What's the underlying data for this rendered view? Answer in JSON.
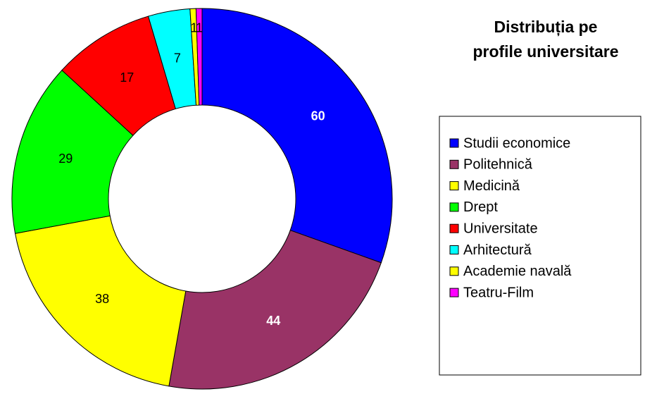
{
  "chart_data": {
    "type": "donut",
    "title": "Distribuția pe profile universitare",
    "categories": [
      "Studii economice",
      "Politehnică",
      "Medicină",
      "Drept",
      "Universitate",
      "Arhitectură",
      "Academie navală",
      "Teatru-Film"
    ],
    "values": [
      60,
      44,
      38,
      29,
      17,
      7,
      1,
      1
    ],
    "colors": [
      "#0000ff",
      "#993366",
      "#ffff00",
      "#00ff00",
      "#ff0000",
      "#00ffff",
      "#ffff00",
      "#ff00ff"
    ],
    "label_colors": [
      "#ffffff",
      "#ffffff",
      "#000000",
      "#000000",
      "#000000",
      "#000000",
      "#000000",
      "#000000"
    ],
    "legend": "right"
  }
}
